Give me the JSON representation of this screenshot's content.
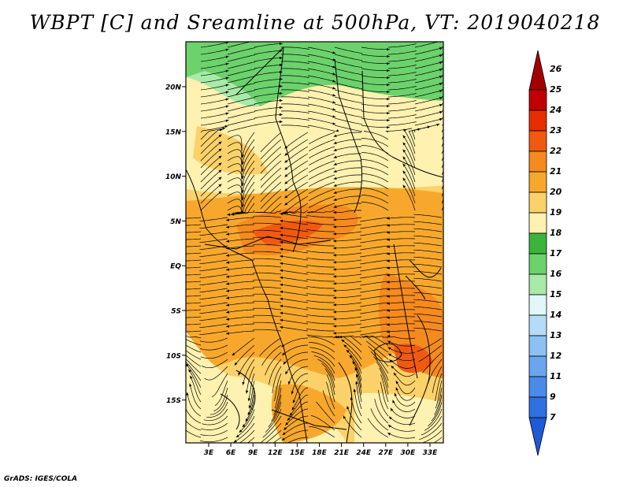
{
  "title": "WBPT [C] and Sreamline at 500hPa, VT: 2019040218",
  "credit": "GrADS: IGES/COLA",
  "map": {
    "lat_ticks": [
      "20N",
      "15N",
      "10N",
      "5N",
      "EQ",
      "5S",
      "10S",
      "15S"
    ],
    "lon_ticks": [
      "3E",
      "6E",
      "9E",
      "12E",
      "15E",
      "18E",
      "21E",
      "24E",
      "27E",
      "30E",
      "33E"
    ]
  },
  "colorbar": {
    "levels": [
      {
        "label": "26",
        "color": "#a50000"
      },
      {
        "label": "25",
        "color": "#c00000"
      },
      {
        "label": "24",
        "color": "#e62e00"
      },
      {
        "label": "23",
        "color": "#f05a10"
      },
      {
        "label": "22",
        "color": "#f58a1e"
      },
      {
        "label": "21",
        "color": "#f7a82c"
      },
      {
        "label": "20",
        "color": "#fbd16a"
      },
      {
        "label": "19",
        "color": "#fff1b0"
      },
      {
        "label": "18",
        "color": "#3cb43c"
      },
      {
        "label": "17",
        "color": "#6cd26c"
      },
      {
        "label": "16",
        "color": "#a8eaa8"
      },
      {
        "label": "15",
        "color": "#e2f8f8"
      },
      {
        "label": "14",
        "color": "#b5dcf7"
      },
      {
        "label": "13",
        "color": "#8cc2f2"
      },
      {
        "label": "12",
        "color": "#6aa6ee"
      },
      {
        "label": "11",
        "color": "#4a8be8"
      },
      {
        "label": "9",
        "color": "#3070e0"
      },
      {
        "label": "7",
        "color": "#1e5ad6"
      }
    ]
  }
}
